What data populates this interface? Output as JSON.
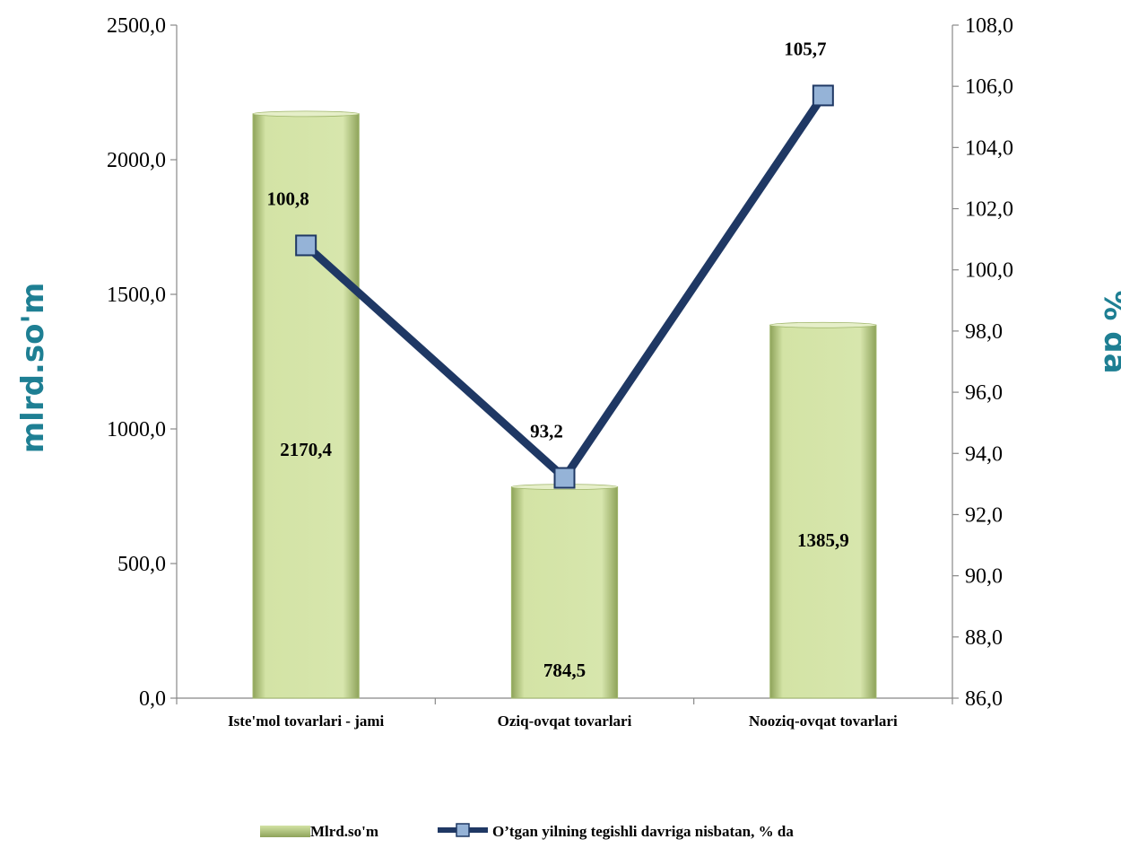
{
  "chart_data": {
    "type": "bar",
    "categories": [
      "Iste'mol tovarlari - jami",
      "Oziq-ovqat tovarlari",
      "Nooziq-ovqat tovarlari"
    ],
    "series": [
      {
        "name": "Mlrd.so'm",
        "type": "bar",
        "axis": "left",
        "values": [
          2170.4,
          784.5,
          1385.9
        ],
        "labels": [
          "2170,4",
          "784,5",
          "1385,9"
        ],
        "color": "#d3e3a5"
      },
      {
        "name": "O’tgan yilning tegishli davriga nisbatan, % da",
        "type": "line",
        "axis": "right",
        "values": [
          100.8,
          93.2,
          105.7
        ],
        "labels": [
          "100,8",
          "93,2",
          "105,7"
        ],
        "color": "#1f3864",
        "marker_color": "#95b3d7"
      }
    ],
    "ylabel_left": "mlrd.so'm",
    "ylabel_right": "% da",
    "ylim_left": [
      0,
      2500
    ],
    "ylim_right": [
      86,
      108
    ],
    "yticks_left": [
      "0,0",
      "500,0",
      "1000,0",
      "1500,0",
      "2000,0",
      "2500,0"
    ],
    "yticks_right": [
      "86,0",
      "88,0",
      "90,0",
      "92,0",
      "94,0",
      "96,0",
      "98,0",
      "100,0",
      "102,0",
      "104,0",
      "106,0",
      "108,0"
    ],
    "grid": false,
    "legend_position": "bottom"
  }
}
